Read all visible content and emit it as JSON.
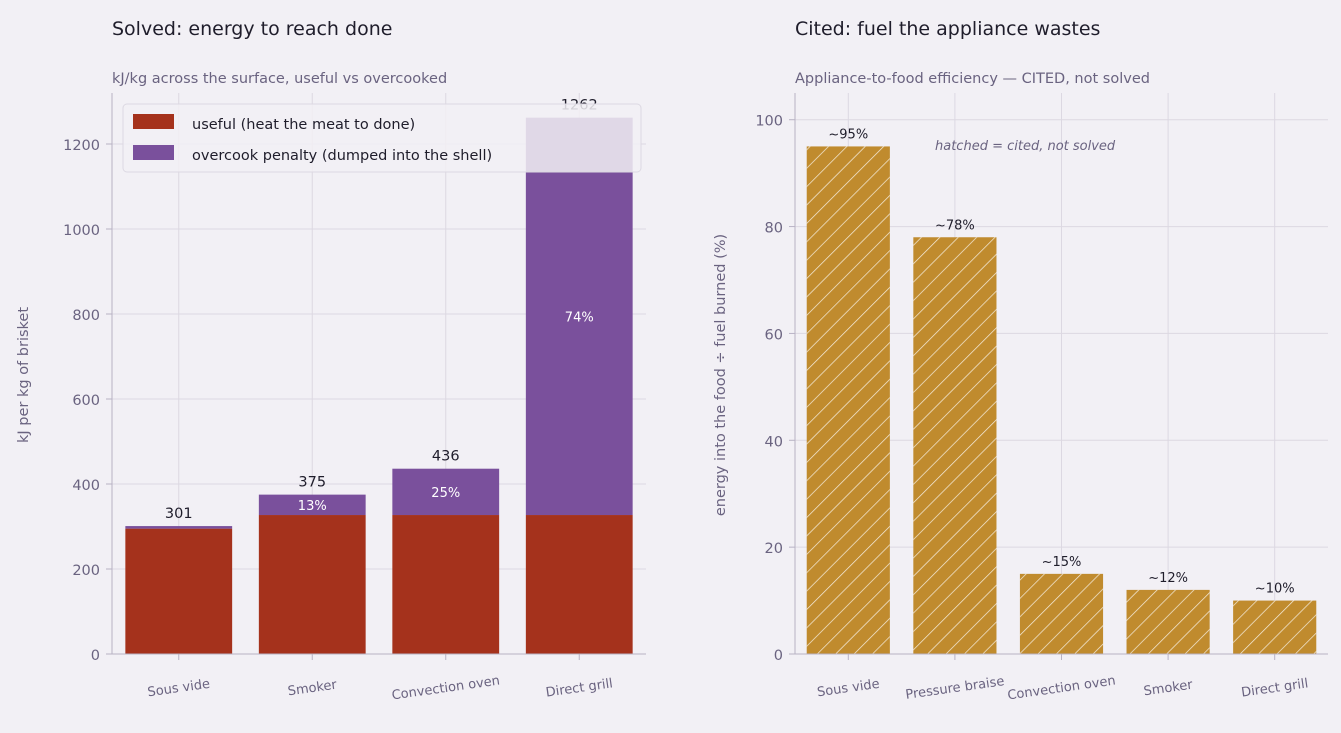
{
  "chart_data": [
    {
      "type": "bar",
      "stacked": true,
      "title": "Solved: energy to reach done",
      "subtitle": "kJ/kg across the surface, useful vs overcooked",
      "ylabel": "kJ per kg of brisket",
      "xlabel": "",
      "ylim": [
        0,
        1320
      ],
      "yticks": [
        0,
        200,
        400,
        600,
        800,
        1000,
        1200
      ],
      "grid": true,
      "legend_position": "top-left",
      "categories": [
        "Sous vide",
        "Smoker",
        "Convection oven",
        "Direct grill"
      ],
      "series": [
        {
          "name": "useful (heat the meat to done)",
          "color": "#a5321c",
          "values": [
            295,
            327,
            327,
            327
          ]
        },
        {
          "name": "overcook penalty (dumped into the shell)",
          "color": "#7a509c",
          "values": [
            6,
            48,
            109,
            935
          ]
        }
      ],
      "totals": [
        "301",
        "375",
        "436",
        "1262"
      ],
      "penalty_labels": [
        "",
        "13%",
        "25%",
        "74%"
      ]
    },
    {
      "type": "bar",
      "title": "Cited: fuel the appliance wastes",
      "subtitle": "Appliance-to-food efficiency — CITED, not solved",
      "ylabel": "energy into the food ÷ fuel burned (%)",
      "xlabel": "",
      "ylim": [
        0,
        105
      ],
      "yticks": [
        0,
        20,
        40,
        60,
        80,
        100
      ],
      "grid": true,
      "color": "#c08b2e",
      "hatched": true,
      "annotation": "hatched = cited, not solved",
      "categories": [
        "Sous vide",
        "Pressure braise",
        "Convection oven",
        "Smoker",
        "Direct grill"
      ],
      "values": [
        95,
        78,
        15,
        12,
        10
      ],
      "value_labels": [
        "~95%",
        "~78%",
        "~15%",
        "~12%",
        "~10%"
      ]
    }
  ]
}
